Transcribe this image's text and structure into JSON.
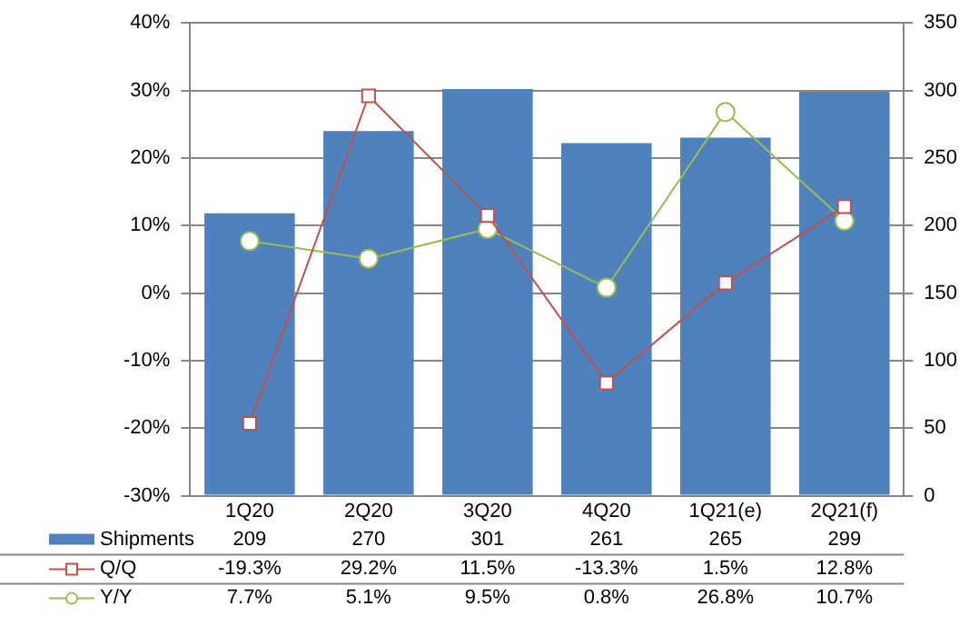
{
  "chart_data": {
    "type": "bar",
    "categories": [
      "1Q20",
      "2Q20",
      "3Q20",
      "4Q20",
      "1Q21(e)",
      "2Q21(f)"
    ],
    "series": [
      {
        "name": "Shipments",
        "axis": "y2",
        "color": "#4f81bd",
        "values": [
          209,
          270,
          301,
          261,
          265,
          299
        ],
        "value_labels": [
          "209",
          "270",
          "301",
          "261",
          "265",
          "299"
        ]
      },
      {
        "name": "Q/Q",
        "type": "line",
        "color": "#c0504d",
        "marker": "square",
        "values": [
          -19.3,
          29.2,
          11.5,
          -13.3,
          1.5,
          12.8
        ],
        "value_labels": [
          "-19.3%",
          "29.2%",
          "11.5%",
          "-13.3%",
          "1.5%",
          "12.8%"
        ]
      },
      {
        "name": "Y/Y",
        "type": "line",
        "color": "#9bbb59",
        "marker": "circle",
        "values": [
          7.7,
          5.1,
          9.5,
          0.8,
          26.8,
          10.7
        ],
        "value_labels": [
          "7.7%",
          "5.1%",
          "9.5%",
          "0.8%",
          "26.8%",
          "10.7%"
        ]
      }
    ],
    "ylim": [
      -30,
      40
    ],
    "yticks": [
      {
        "value": -30,
        "label": "-30%"
      },
      {
        "value": -20,
        "label": "-20%"
      },
      {
        "value": -10,
        "label": "-10%"
      },
      {
        "value": 0,
        "label": "0%"
      },
      {
        "value": 10,
        "label": "10%"
      },
      {
        "value": 20,
        "label": "20%"
      },
      {
        "value": 30,
        "label": "30%"
      },
      {
        "value": 40,
        "label": "40%"
      }
    ],
    "y2lim": [
      0,
      350
    ],
    "y2ticks": [
      0,
      50,
      100,
      150,
      200,
      250,
      300,
      350
    ],
    "grid": "y",
    "legend": "bottom left"
  }
}
